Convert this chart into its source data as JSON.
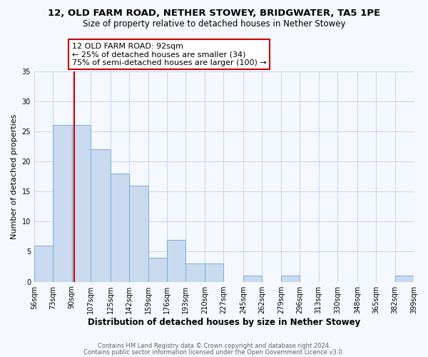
{
  "title": "12, OLD FARM ROAD, NETHER STOWEY, BRIDGWATER, TA5 1PE",
  "subtitle": "Size of property relative to detached houses in Nether Stowey",
  "xlabel": "Distribution of detached houses by size in Nether Stowey",
  "ylabel": "Number of detached properties",
  "bins": [
    56,
    73,
    90,
    107,
    125,
    142,
    159,
    176,
    193,
    210,
    227,
    245,
    262,
    279,
    296,
    313,
    330,
    348,
    365,
    382,
    399
  ],
  "counts": [
    6,
    26,
    26,
    22,
    18,
    16,
    4,
    7,
    3,
    3,
    0,
    1,
    0,
    1,
    0,
    0,
    0,
    0,
    0,
    1
  ],
  "bar_color": "#c9d9f0",
  "bar_edge_color": "#7bafd4",
  "property_line_x": 92,
  "property_line_color": "#cc0000",
  "annotation_line1": "12 OLD FARM ROAD: 92sqm",
  "annotation_line2": "← 25% of detached houses are smaller (34)",
  "annotation_line3": "75% of semi-detached houses are larger (100) →",
  "annotation_box_color": "#ffffff",
  "annotation_box_edge_color": "#cc0000",
  "ylim": [
    0,
    35
  ],
  "yticks": [
    0,
    5,
    10,
    15,
    20,
    25,
    30,
    35
  ],
  "tick_labels": [
    "56sqm",
    "73sqm",
    "90sqm",
    "107sqm",
    "125sqm",
    "142sqm",
    "159sqm",
    "176sqm",
    "193sqm",
    "210sqm",
    "227sqm",
    "245sqm",
    "262sqm",
    "279sqm",
    "296sqm",
    "313sqm",
    "330sqm",
    "348sqm",
    "365sqm",
    "382sqm",
    "399sqm"
  ],
  "footer1": "Contains HM Land Registry data © Crown copyright and database right 2024.",
  "footer2": "Contains public sector information licensed under the Open Government Licence v3.0.",
  "background_color": "#f5f8ff",
  "grid_color": "#c8d8ee"
}
